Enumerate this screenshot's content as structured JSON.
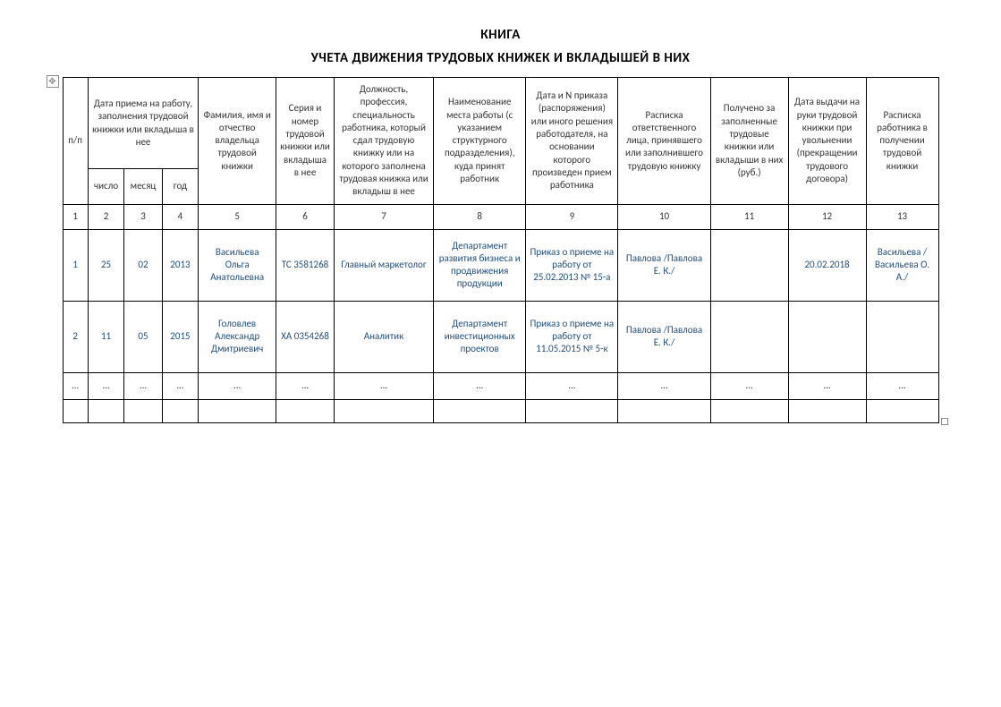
{
  "title": {
    "line1": "КНИГА",
    "line2": "УЧЕТА ДВИЖЕНИЯ ТРУДОВЫХ КНИЖЕК И ВКЛАДЫШЕЙ В НИХ"
  },
  "headers": {
    "num": "п/п",
    "date_group": "Дата приема на работу, заполнения трудовой книжки или вкладыша в нее",
    "day": "число",
    "month": "месяц",
    "year": "год",
    "fio": "Фамилия, имя и отчество владельца трудовой книжки",
    "series": "Серия и номер трудовой книжки или вкладыша в нее",
    "position": "Должность, профессия, специальность работника, который сдал трудовую книжку или на которого заполнена трудовая книжка или вкладыш в нее",
    "department": "Наименование места работы (с указанием структурного подразделения), куда принят работник",
    "order": "Дата и N приказа (распоряжения) или иного решения работодателя, на основании которого произведен прием работника",
    "responsible": "Расписка ответственного лица, принявшего или заполнившего трудовую книжку",
    "received": "Получено за заполненные трудовые книжки или вкладыши в них (руб.)",
    "issue_date": "Дата выдачи на руки трудовой книжки при увольнении (прекращении трудового договора)",
    "signature": "Расписка работника в получении трудовой книжки"
  },
  "colnums": [
    "1",
    "2",
    "3",
    "4",
    "5",
    "6",
    "7",
    "8",
    "9",
    "10",
    "11",
    "12",
    "13"
  ],
  "rows": [
    {
      "num": "1",
      "day": "25",
      "month": "02",
      "year": "2013",
      "fio": "Васильева Ольга Анатольевна",
      "series": "ТС 3581268",
      "position": "Главный маркетолог",
      "department": "Департамент развития бизнеса и продвижения продукции",
      "order": "Приказ о приеме на работу от 25.02.2013 № 15-а",
      "responsible": "Павлова /Павлова Е. К./",
      "received": "",
      "issue_date": "20.02.2018",
      "signature": "Васильева /Васильева О. А./"
    },
    {
      "num": "2",
      "day": "11",
      "month": "05",
      "year": "2015",
      "fio": "Головлев Александр Дмитриевич",
      "series": "ХА 0354268",
      "position": "Аналитик",
      "department": "Департамент инвестиционных проектов",
      "order": "Приказ о приеме на работу от 11.05.2015 № 5-к",
      "responsible": "Павлова /Павлова Е. К./",
      "received": "",
      "issue_date": "",
      "signature": ""
    }
  ],
  "ellipsis": "…",
  "colors": {
    "data_text": "#1f4e79",
    "header_text": "#333333",
    "border": "#000000",
    "background": "#ffffff"
  }
}
